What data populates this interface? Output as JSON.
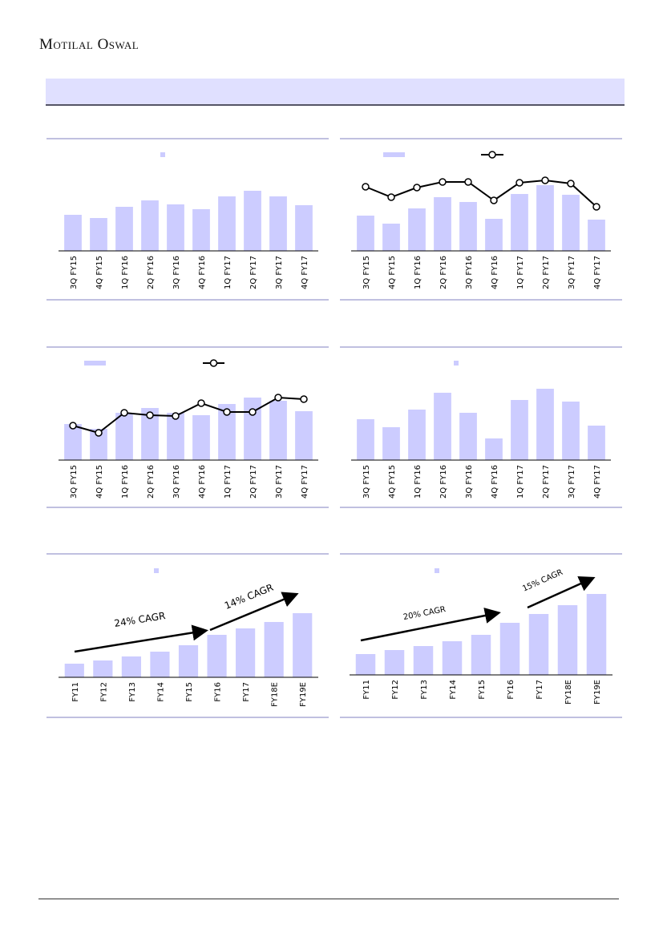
{
  "header": {
    "brand": "Motilal Oswal"
  },
  "colors": {
    "bar": "#ccccff",
    "line": "#000000",
    "frame": "#8080c0",
    "band": "#e0e0ff"
  },
  "chart_data": [
    {
      "type": "bar",
      "categories": [
        "3Q FY15",
        "4Q FY15",
        "1Q FY16",
        "2Q FY16",
        "3Q FY16",
        "4Q FY16",
        "1Q FY17",
        "2Q FY17",
        "3Q FY17",
        "4Q FY17"
      ],
      "values": [
        45,
        41,
        55,
        63,
        58,
        52,
        68,
        75,
        68,
        57
      ],
      "ylim": [
        0,
        130
      ]
    },
    {
      "type": "bar+line",
      "categories": [
        "3Q FY15",
        "4Q FY15",
        "1Q FY16",
        "2Q FY16",
        "3Q FY16",
        "4Q FY16",
        "1Q FY17",
        "2Q FY17",
        "3Q FY17",
        "4Q FY17"
      ],
      "values": [
        44,
        34,
        53,
        67,
        61,
        40,
        71,
        82,
        70,
        39
      ],
      "line": [
        80,
        67,
        79,
        86,
        86,
        63,
        85,
        88,
        84,
        55
      ],
      "ylim": [
        0,
        130
      ]
    },
    {
      "type": "bar+line",
      "categories": [
        "3Q FY15",
        "4Q FY15",
        "1Q FY16",
        "2Q FY16",
        "3Q FY16",
        "4Q FY16",
        "1Q FY17",
        "2Q FY17",
        "3Q FY17",
        "4Q FY17"
      ],
      "values": [
        45,
        39,
        59,
        65,
        59,
        56,
        70,
        78,
        74,
        61
      ],
      "line": [
        43,
        34,
        59,
        56,
        55,
        71,
        60,
        60,
        78,
        76
      ],
      "ylim": [
        0,
        130
      ]
    },
    {
      "type": "bar",
      "categories": [
        "3Q FY15",
        "4Q FY15",
        "1Q FY16",
        "2Q FY16",
        "3Q FY16",
        "4Q FY16",
        "1Q FY17",
        "2Q FY17",
        "3Q FY17",
        "4Q FY17"
      ],
      "values": [
        51,
        41,
        63,
        84,
        59,
        27,
        75,
        89,
        73,
        43
      ],
      "ylim": [
        0,
        130
      ]
    },
    {
      "type": "bar",
      "categories": [
        "FY11",
        "FY12",
        "FY13",
        "FY14",
        "FY15",
        "FY16",
        "FY17",
        "FY18E",
        "FY19E"
      ],
      "values": [
        17,
        21,
        26,
        32,
        40,
        53,
        61,
        69,
        80
      ],
      "ylim": [
        0,
        130
      ],
      "annotations": [
        "24% CAGR",
        "14% CAGR"
      ]
    },
    {
      "type": "bar",
      "categories": [
        "FY11",
        "FY12",
        "FY13",
        "FY14",
        "FY15",
        "FY16",
        "FY17",
        "FY18E",
        "FY19E"
      ],
      "values": [
        26,
        31,
        36,
        42,
        50,
        65,
        76,
        87,
        101
      ],
      "ylim": [
        0,
        130
      ],
      "annotations": [
        "20% CAGR",
        "15% CAGR"
      ]
    }
  ]
}
